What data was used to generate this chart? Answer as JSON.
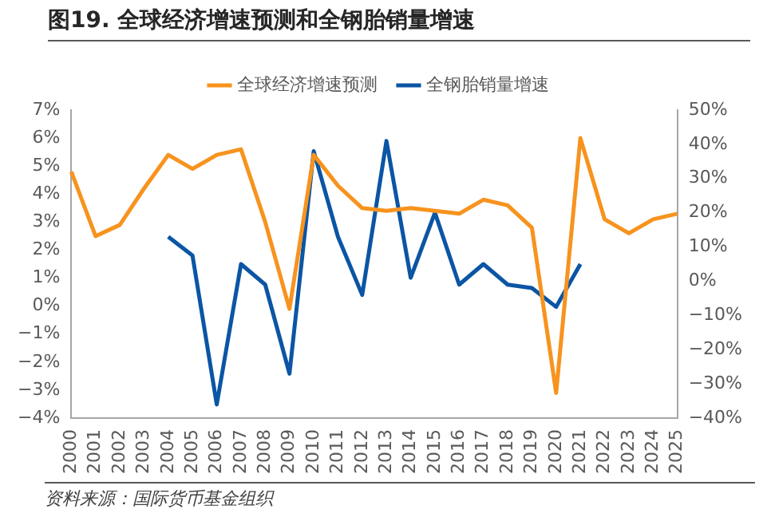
{
  "chart_data": {
    "type": "line",
    "title": "图19. 全球经济增速预测和全钢胎销量增速",
    "categories": [
      "2000",
      "2001",
      "2002",
      "2003",
      "2004",
      "2005",
      "2006",
      "2007",
      "2008",
      "2009",
      "2010",
      "2011",
      "2012",
      "2013",
      "2014",
      "2015",
      "2016",
      "2017",
      "2018",
      "2019",
      "2020",
      "2021",
      "2022",
      "2023",
      "2024",
      "2025"
    ],
    "series": [
      {
        "name": "全球经济增速预测",
        "color": "#f7931e",
        "values": [
          4.8,
          2.5,
          2.9,
          4.2,
          5.4,
          4.9,
          5.4,
          5.6,
          3.0,
          -0.1,
          5.4,
          4.3,
          3.5,
          3.4,
          3.5,
          3.4,
          3.3,
          3.8,
          3.6,
          2.8,
          -3.1,
          6.0,
          3.1,
          2.6,
          3.1,
          3.3
        ]
      },
      {
        "name": "全钢胎销量增速",
        "color": "#0b55a4",
        "axis": "y2",
        "values": [
          null,
          null,
          null,
          null,
          13,
          7.5,
          -36,
          5,
          -1,
          -27,
          38,
          13,
          -4,
          41,
          1,
          20,
          -1,
          5,
          -1,
          -2,
          -7.5,
          5,
          null,
          null,
          null,
          null
        ]
      }
    ],
    "ylim": [
      -4,
      7
    ],
    "yticks": [
      {
        "value": -4,
        "label": "−4%"
      },
      {
        "value": -3,
        "label": "−3%"
      },
      {
        "value": -2,
        "label": "−2%"
      },
      {
        "value": -1,
        "label": "−1%"
      },
      {
        "value": 0,
        "label": "0%"
      },
      {
        "value": 1,
        "label": "1%"
      },
      {
        "value": 2,
        "label": "2%"
      },
      {
        "value": 3,
        "label": "3%"
      },
      {
        "value": 4,
        "label": "4%"
      },
      {
        "value": 5,
        "label": "5%"
      },
      {
        "value": 6,
        "label": "6%"
      },
      {
        "value": 7,
        "label": "7%"
      }
    ],
    "y2lim": [
      -40,
      50
    ],
    "y2ticks": [
      {
        "value": -40,
        "label": "−40%"
      },
      {
        "value": -30,
        "label": "−30%"
      },
      {
        "value": -20,
        "label": "−20%"
      },
      {
        "value": -10,
        "label": "−10%"
      },
      {
        "value": 0,
        "label": "0%"
      },
      {
        "value": 10,
        "label": "10%"
      },
      {
        "value": 20,
        "label": "20%"
      },
      {
        "value": 30,
        "label": "30%"
      },
      {
        "value": 40,
        "label": "40%"
      },
      {
        "value": 50,
        "label": "50%"
      }
    ],
    "legend": "top",
    "line_style": "solid",
    "marker": "none",
    "annotations": [
      "资料来源：国际货币基金组织"
    ]
  }
}
